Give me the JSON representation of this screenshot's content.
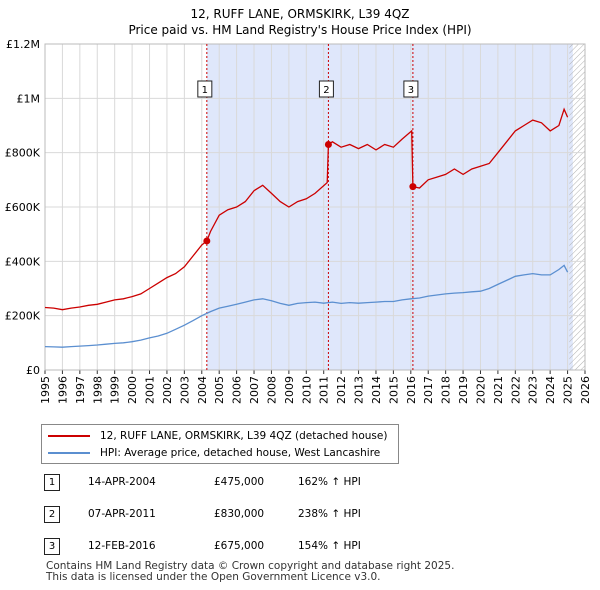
{
  "title": {
    "line1": "12, RUFF LANE, ORMSKIRK, L39 4QZ",
    "line2": "Price paid vs. HM Land Registry's House Price Index (HPI)"
  },
  "colors": {
    "property": "#cc0000",
    "hpi": "#5b8fd0",
    "shade": "#dfe7fb",
    "hatch": "#b0b0b0",
    "vline": "#cc0000"
  },
  "legend": {
    "property_label": "12, RUFF LANE, ORMSKIRK, L39 4QZ (detached house)",
    "hpi_label": "HPI: Average price, detached house, West Lancashire"
  },
  "sales": [
    {
      "num": "1",
      "date": "14-APR-2004",
      "price": "£475,000",
      "hpi_change": "162% ↑ HPI"
    },
    {
      "num": "2",
      "date": "07-APR-2011",
      "price": "£830,000",
      "hpi_change": "238% ↑ HPI"
    },
    {
      "num": "3",
      "date": "12-FEB-2016",
      "price": "£675,000",
      "hpi_change": "154% ↑ HPI"
    }
  ],
  "footer": {
    "line1": "Contains HM Land Registry data © Crown copyright and database right 2025.",
    "line2": "This data is licensed under the Open Government Licence v3.0."
  },
  "chart_data": {
    "type": "line",
    "title": "12, RUFF LANE, ORMSKIRK, L39 4QZ",
    "subtitle": "Price paid vs. HM Land Registry's House Price Index (HPI)",
    "xlabel": "",
    "ylabel": "",
    "xlim": [
      1995,
      2026
    ],
    "ylim": [
      0,
      1200000
    ],
    "x_ticks": [
      "1995",
      "1996",
      "1997",
      "1998",
      "1999",
      "2000",
      "2001",
      "2002",
      "2003",
      "2004",
      "2005",
      "2006",
      "2007",
      "2008",
      "2009",
      "2010",
      "2011",
      "2012",
      "2013",
      "2014",
      "2015",
      "2016",
      "2017",
      "2018",
      "2019",
      "2020",
      "2021",
      "2022",
      "2023",
      "2024",
      "2025",
      "2026"
    ],
    "y_ticks": [
      {
        "value": 0,
        "label": "£0"
      },
      {
        "value": 200000,
        "label": "£200K"
      },
      {
        "value": 400000,
        "label": "£400K"
      },
      {
        "value": 600000,
        "label": "£600K"
      },
      {
        "value": 800000,
        "label": "£800K"
      },
      {
        "value": 1000000,
        "label": "£1M"
      },
      {
        "value": 1200000,
        "label": "£1.2M"
      }
    ],
    "grid": true,
    "shaded_range": [
      2004.29,
      2025.3
    ],
    "future_hatch_from": 2025.1,
    "sale_markers": [
      {
        "label": "1",
        "x": 2004.29,
        "y": 475000
      },
      {
        "label": "2",
        "x": 2011.27,
        "y": 830000
      },
      {
        "label": "3",
        "x": 2016.12,
        "y": 675000
      }
    ],
    "series": [
      {
        "name": "12, RUFF LANE, ORMSKIRK, L39 4QZ (detached house)",
        "color": "#cc0000",
        "x": [
          1995.0,
          1995.5,
          1996.0,
          1996.5,
          1997.0,
          1997.5,
          1998.0,
          1998.5,
          1999.0,
          1999.5,
          2000.0,
          2000.5,
          2001.0,
          2001.5,
          2002.0,
          2002.5,
          2003.0,
          2003.5,
          2004.0,
          2004.29,
          2004.5,
          2005.0,
          2005.5,
          2006.0,
          2006.5,
          2007.0,
          2007.5,
          2008.0,
          2008.5,
          2009.0,
          2009.5,
          2010.0,
          2010.5,
          2011.2,
          2011.27,
          2011.5,
          2012.0,
          2012.5,
          2013.0,
          2013.5,
          2014.0,
          2014.5,
          2015.0,
          2015.5,
          2016.05,
          2016.12,
          2016.5,
          2017.0,
          2017.5,
          2018.0,
          2018.5,
          2019.0,
          2019.5,
          2020.0,
          2020.5,
          2021.0,
          2021.5,
          2022.0,
          2022.5,
          2023.0,
          2023.5,
          2024.0,
          2024.5,
          2024.8,
          2025.0
        ],
        "values": [
          230000,
          228000,
          222000,
          228000,
          232000,
          238000,
          242000,
          250000,
          258000,
          262000,
          270000,
          280000,
          300000,
          320000,
          340000,
          355000,
          380000,
          420000,
          460000,
          475000,
          510000,
          570000,
          590000,
          600000,
          620000,
          660000,
          680000,
          650000,
          620000,
          600000,
          620000,
          630000,
          650000,
          690000,
          830000,
          840000,
          820000,
          830000,
          815000,
          830000,
          810000,
          830000,
          820000,
          850000,
          880000,
          675000,
          670000,
          700000,
          710000,
          720000,
          740000,
          720000,
          740000,
          750000,
          760000,
          800000,
          840000,
          880000,
          900000,
          920000,
          910000,
          880000,
          900000,
          960000,
          930000
        ]
      },
      {
        "name": "HPI: Average price, detached house, West Lancashire",
        "color": "#5b8fd0",
        "x": [
          1995.0,
          1995.5,
          1996.0,
          1996.5,
          1997.0,
          1997.5,
          1998.0,
          1998.5,
          1999.0,
          1999.5,
          2000.0,
          2000.5,
          2001.0,
          2001.5,
          2002.0,
          2002.5,
          2003.0,
          2003.5,
          2004.0,
          2004.5,
          2005.0,
          2005.5,
          2006.0,
          2006.5,
          2007.0,
          2007.5,
          2008.0,
          2008.5,
          2009.0,
          2009.5,
          2010.0,
          2010.5,
          2011.0,
          2011.5,
          2012.0,
          2012.5,
          2013.0,
          2013.5,
          2014.0,
          2014.5,
          2015.0,
          2015.5,
          2016.0,
          2016.5,
          2017.0,
          2017.5,
          2018.0,
          2018.5,
          2019.0,
          2019.5,
          2020.0,
          2020.5,
          2021.0,
          2021.5,
          2022.0,
          2022.5,
          2023.0,
          2023.5,
          2024.0,
          2024.5,
          2024.8,
          2025.0
        ],
        "values": [
          86000,
          85000,
          84000,
          86000,
          88000,
          90000,
          92000,
          95000,
          98000,
          100000,
          104000,
          110000,
          118000,
          125000,
          135000,
          150000,
          165000,
          182000,
          200000,
          215000,
          228000,
          235000,
          242000,
          250000,
          258000,
          262000,
          255000,
          245000,
          238000,
          245000,
          248000,
          250000,
          246000,
          250000,
          245000,
          248000,
          246000,
          248000,
          250000,
          252000,
          252000,
          258000,
          262000,
          265000,
          272000,
          276000,
          280000,
          283000,
          285000,
          288000,
          290000,
          300000,
          315000,
          330000,
          345000,
          350000,
          355000,
          350000,
          350000,
          370000,
          385000,
          360000
        ]
      }
    ]
  }
}
